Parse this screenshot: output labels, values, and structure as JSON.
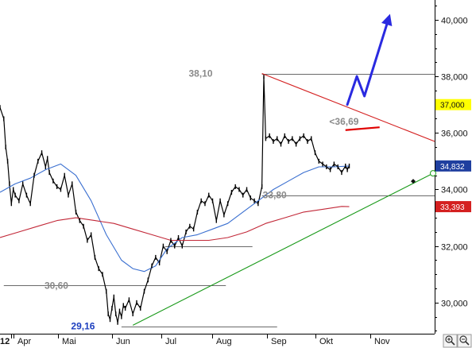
{
  "chart_data": {
    "type": "line",
    "title": "",
    "x_start_label": "12",
    "months": [
      "Apr",
      "Mai",
      "Jun",
      "Jul",
      "Aug",
      "Sep",
      "Okt",
      "Nov"
    ],
    "y_ticks": [
      "30,000",
      "32,000",
      "34,000",
      "36,000",
      "38,000",
      "40,000"
    ],
    "ylim": [
      28.9,
      40.7
    ],
    "xlim_days": [
      0,
      229
    ],
    "price_tags": [
      {
        "label": "37,000",
        "value": 37.0,
        "bg": "#ffff00",
        "fg": "#111111"
      },
      {
        "label": "34,832",
        "value": 34.832,
        "bg": "#1f3f9f",
        "fg": "#ffffff"
      },
      {
        "label": "33,393",
        "value": 33.393,
        "bg": "#d42020",
        "fg": "#ffffff"
      }
    ],
    "annotations": [
      {
        "label": "38,10",
        "x_day": 112,
        "value": 38.1,
        "color": "#8a8a8a"
      },
      {
        "label": "<36,69",
        "x_day": 189,
        "value": 36.4,
        "color": "#8a8a8a"
      },
      {
        "label": "33,80",
        "x_day": 151,
        "value": 33.8,
        "color": "#8a8a8a"
      },
      {
        "label": "30,60",
        "x_day": 36,
        "value": 30.6,
        "color": "#8a8a8a"
      },
      {
        "label": "29,16",
        "x_day": 50,
        "value": 29.16,
        "color": "#1d3fbf"
      }
    ],
    "horizontal_lines": [
      {
        "value": 38.1,
        "x_from_day": 138,
        "x_to_day": 229
      },
      {
        "value": 33.8,
        "x_from_day": 138,
        "x_to_day": 229
      },
      {
        "value": 32.0,
        "x_from_day": 87,
        "x_to_day": 133
      },
      {
        "value": 30.6,
        "x_from_day": 2,
        "x_to_day": 119
      },
      {
        "value": 29.16,
        "x_from_day": 64,
        "x_to_day": 146
      }
    ],
    "trendlines": [
      {
        "name": "resistance",
        "color": "#d42020",
        "from": [
          138,
          38.1
        ],
        "to": [
          229,
          35.7
        ]
      },
      {
        "name": "support",
        "color": "#1a9a1a",
        "from": [
          70,
          29.2
        ],
        "to": [
          229,
          34.6
        ]
      },
      {
        "name": "target-36.69",
        "color": "#e00000",
        "from": [
          182,
          36.1
        ],
        "to": [
          200,
          36.2
        ]
      }
    ],
    "forecast_arrow": {
      "color": "#2a2ae0",
      "points": [
        [
          183,
          37.0
        ],
        [
          188,
          38.0
        ],
        [
          192,
          37.3
        ],
        [
          205,
          40.1
        ]
      ]
    },
    "series": [
      {
        "name": "price",
        "color": "#000000",
        "x": [
          0,
          2,
          3,
          4,
          5,
          6,
          7,
          8,
          10,
          12,
          14,
          16,
          18,
          20,
          22,
          24,
          25,
          26,
          28,
          30,
          32,
          34,
          36,
          38,
          40,
          42,
          44,
          46,
          48,
          50,
          52,
          54,
          56,
          57,
          58,
          59,
          60,
          61,
          62,
          63,
          64,
          65,
          66,
          68,
          70,
          72,
          74,
          76,
          78,
          80,
          82,
          84,
          86,
          88,
          90,
          92,
          94,
          96,
          98,
          100,
          102,
          104,
          106,
          108,
          110,
          112,
          114,
          116,
          118,
          120,
          122,
          124,
          126,
          128,
          130,
          132,
          134,
          136,
          138,
          139,
          140,
          142,
          144,
          146,
          148,
          150,
          152,
          154,
          156,
          158,
          160,
          162,
          164,
          166,
          168,
          170,
          172,
          174,
          176,
          178,
          180,
          182,
          183,
          184
        ],
        "values": [
          36.9,
          36.5,
          35.5,
          35.0,
          34.2,
          33.5,
          34.0,
          33.8,
          33.6,
          34.2,
          33.8,
          33.5,
          34.5,
          35.0,
          35.3,
          34.8,
          35.1,
          34.6,
          34.3,
          34.1,
          34.0,
          34.5,
          33.8,
          34.2,
          33.2,
          32.9,
          32.7,
          32.2,
          32.4,
          31.6,
          31.2,
          31.0,
          30.4,
          29.6,
          29.4,
          29.8,
          30.2,
          29.6,
          29.3,
          29.7,
          29.5,
          29.9,
          29.8,
          30.1,
          29.6,
          30.0,
          29.8,
          30.4,
          30.8,
          31.3,
          31.6,
          31.4,
          32.0,
          31.8,
          32.2,
          32.0,
          32.3,
          32.0,
          32.5,
          32.7,
          32.6,
          33.2,
          33.6,
          33.5,
          33.8,
          33.6,
          32.9,
          33.6,
          33.1,
          33.5,
          33.9,
          34.1,
          34.0,
          33.8,
          34.0,
          33.7,
          33.6,
          33.5,
          34.1,
          38.0,
          35.8,
          35.9,
          35.7,
          35.8,
          35.6,
          35.9,
          35.7,
          35.8,
          35.6,
          35.8,
          35.9,
          35.7,
          35.8,
          35.3,
          35.0,
          34.9,
          34.8,
          34.7,
          34.9,
          34.8,
          34.6,
          34.83,
          34.7,
          34.83
        ]
      },
      {
        "name": "moving-average-short",
        "color": "#3a6fd0",
        "x": [
          0,
          8,
          16,
          24,
          32,
          40,
          48,
          56,
          64,
          70,
          76,
          82,
          88,
          96,
          104,
          112,
          120,
          128,
          136,
          144,
          152,
          160,
          168,
          176,
          184
        ],
        "values": [
          33.9,
          34.2,
          34.4,
          34.7,
          34.9,
          34.5,
          33.6,
          32.4,
          31.5,
          31.2,
          31.1,
          31.3,
          31.9,
          32.3,
          32.4,
          32.6,
          32.8,
          33.2,
          33.6,
          34.0,
          34.3,
          34.6,
          34.8,
          34.8,
          34.83
        ]
      },
      {
        "name": "moving-average-long",
        "color": "#c22838",
        "x": [
          0,
          10,
          20,
          30,
          40,
          50,
          60,
          70,
          80,
          90,
          100,
          110,
          120,
          130,
          140,
          150,
          160,
          170,
          180,
          184
        ],
        "values": [
          32.3,
          32.5,
          32.7,
          32.9,
          33.0,
          32.9,
          32.8,
          32.6,
          32.4,
          32.2,
          32.2,
          32.2,
          32.3,
          32.5,
          32.8,
          33.0,
          33.2,
          33.3,
          33.4,
          33.393
        ]
      }
    ],
    "grid": false,
    "legend": "none"
  },
  "toolbar": {
    "zoom_in_icon": "magnifier-plus-icon",
    "zoom_out_icon": "magnifier-minus-icon"
  }
}
